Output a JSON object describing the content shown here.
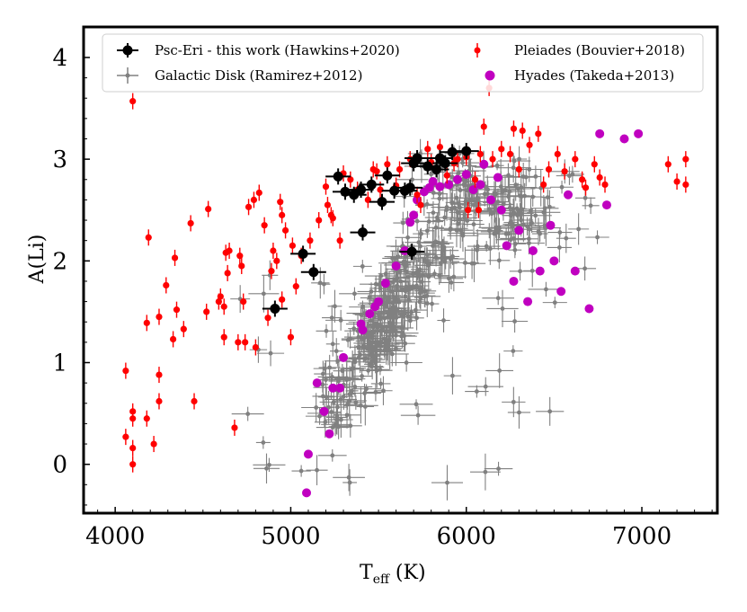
{
  "chart_data": {
    "type": "scatter",
    "xlabel": "T",
    "xlabel_sub": "eff",
    "xlabel_unit": "(K)",
    "ylabel": "A(Li)",
    "xlim": [
      3820,
      7430
    ],
    "ylim": [
      -0.48,
      4.3
    ],
    "xticks": [
      4000,
      5000,
      6000,
      7000
    ],
    "yticks": [
      0,
      1,
      2,
      3,
      4
    ],
    "legend_position": "top",
    "series": [
      {
        "name": "Psc-Eri - this work (Hawkins+2020)",
        "color": "#000000",
        "marker": "big-circle-errorbar",
        "points": [
          [
            4910,
            1.53
          ],
          [
            5070,
            2.07
          ],
          [
            5130,
            1.89
          ],
          [
            5270,
            2.83
          ],
          [
            5310,
            2.68
          ],
          [
            5360,
            2.65
          ],
          [
            5400,
            2.7
          ],
          [
            5410,
            2.28
          ],
          [
            5460,
            2.75
          ],
          [
            5520,
            2.58
          ],
          [
            5550,
            2.84
          ],
          [
            5590,
            2.69
          ],
          [
            5650,
            2.69
          ],
          [
            5680,
            2.72
          ],
          [
            5690,
            2.09
          ],
          [
            5700,
            2.96
          ],
          [
            5720,
            3.01
          ],
          [
            5780,
            2.93
          ],
          [
            5830,
            2.9
          ],
          [
            5850,
            3.01
          ],
          [
            5880,
            2.96
          ],
          [
            5920,
            3.07
          ],
          [
            6000,
            3.08
          ]
        ]
      },
      {
        "name": "Galactic Disk (Ramirez+2012)",
        "color": "#808080",
        "marker": "small-dot-errorbar",
        "points": []
      },
      {
        "name": "Pleiades (Bouvier+2018)",
        "color": "#ff0000",
        "marker": "small-circle-errorbar",
        "points": [
          [
            4100,
            3.57
          ],
          [
            4060,
            0.92
          ],
          [
            4060,
            0.27
          ],
          [
            4100,
            0.52
          ],
          [
            4100,
            0.16
          ],
          [
            4100,
            0.0
          ],
          [
            4100,
            0.45
          ],
          [
            4180,
            1.39
          ],
          [
            4190,
            2.23
          ],
          [
            4180,
            0.45
          ],
          [
            4220,
            0.2
          ],
          [
            4250,
            0.88
          ],
          [
            4250,
            0.62
          ],
          [
            4250,
            1.45
          ],
          [
            4290,
            1.76
          ],
          [
            4330,
            1.23
          ],
          [
            4340,
            2.03
          ],
          [
            4350,
            1.52
          ],
          [
            4390,
            1.33
          ],
          [
            4430,
            2.37
          ],
          [
            4450,
            0.62
          ],
          [
            4520,
            1.5
          ],
          [
            4530,
            2.51
          ],
          [
            4590,
            1.6
          ],
          [
            4600,
            1.65
          ],
          [
            4620,
            1.55
          ],
          [
            4620,
            1.25
          ],
          [
            4630,
            2.08
          ],
          [
            4640,
            1.88
          ],
          [
            4650,
            2.1
          ],
          [
            4680,
            0.36
          ],
          [
            4700,
            1.2
          ],
          [
            4710,
            2.05
          ],
          [
            4720,
            1.95
          ],
          [
            4730,
            1.6
          ],
          [
            4740,
            1.2
          ],
          [
            4760,
            2.53
          ],
          [
            4790,
            2.6
          ],
          [
            4800,
            1.15
          ],
          [
            4820,
            2.67
          ],
          [
            4850,
            2.35
          ],
          [
            4870,
            1.44
          ],
          [
            4890,
            1.9
          ],
          [
            4900,
            2.1
          ],
          [
            4920,
            2.0
          ],
          [
            4940,
            2.58
          ],
          [
            4950,
            2.45
          ],
          [
            4950,
            1.62
          ],
          [
            4970,
            2.3
          ],
          [
            5000,
            1.25
          ],
          [
            5010,
            2.15
          ],
          [
            5030,
            1.75
          ],
          [
            5060,
            2.05
          ],
          [
            5110,
            2.2
          ],
          [
            5160,
            2.4
          ],
          [
            5200,
            2.73
          ],
          [
            5210,
            2.55
          ],
          [
            5230,
            2.45
          ],
          [
            5240,
            2.42
          ],
          [
            5280,
            2.2
          ],
          [
            5300,
            2.86
          ],
          [
            5340,
            2.8
          ],
          [
            5380,
            2.7
          ],
          [
            5440,
            2.6
          ],
          [
            5470,
            2.9
          ],
          [
            5490,
            2.88
          ],
          [
            5510,
            2.7
          ],
          [
            5550,
            2.95
          ],
          [
            5600,
            2.74
          ],
          [
            5620,
            2.9
          ],
          [
            5680,
            3.0
          ],
          [
            5720,
            2.65
          ],
          [
            5740,
            2.55
          ],
          [
            5780,
            3.1
          ],
          [
            5800,
            2.97
          ],
          [
            5850,
            3.12
          ],
          [
            5890,
            2.84
          ],
          [
            5930,
            2.96
          ],
          [
            5950,
            3.0
          ],
          [
            6000,
            3.02
          ],
          [
            6010,
            2.5
          ],
          [
            6050,
            2.8
          ],
          [
            6070,
            2.5
          ],
          [
            6080,
            3.05
          ],
          [
            6100,
            3.32
          ],
          [
            6130,
            3.7
          ],
          [
            6150,
            3.0
          ],
          [
            6200,
            3.1
          ],
          [
            6250,
            3.05
          ],
          [
            6270,
            3.3
          ],
          [
            6300,
            2.9
          ],
          [
            6320,
            3.28
          ],
          [
            6360,
            3.14
          ],
          [
            6410,
            3.25
          ],
          [
            6440,
            2.75
          ],
          [
            6470,
            2.9
          ],
          [
            6520,
            3.05
          ],
          [
            6560,
            2.88
          ],
          [
            6620,
            3.0
          ],
          [
            6660,
            2.8
          ],
          [
            6680,
            2.72
          ],
          [
            6730,
            2.95
          ],
          [
            6760,
            2.82
          ],
          [
            6790,
            2.75
          ],
          [
            7150,
            2.95
          ],
          [
            7200,
            2.78
          ],
          [
            7250,
            2.75
          ],
          [
            7250,
            3.0
          ]
        ]
      },
      {
        "name": "Hyades (Takeda+2013)",
        "color": "#c000c0",
        "marker": "circle",
        "points": [
          [
            5090,
            -0.28
          ],
          [
            5100,
            0.1
          ],
          [
            5150,
            0.8
          ],
          [
            5190,
            0.52
          ],
          [
            5220,
            0.3
          ],
          [
            5240,
            0.75
          ],
          [
            5280,
            0.75
          ],
          [
            5300,
            1.05
          ],
          [
            5400,
            1.38
          ],
          [
            5410,
            1.32
          ],
          [
            5450,
            1.48
          ],
          [
            5480,
            1.55
          ],
          [
            5500,
            1.6
          ],
          [
            5540,
            1.78
          ],
          [
            5600,
            1.95
          ],
          [
            5650,
            2.1
          ],
          [
            5680,
            2.38
          ],
          [
            5700,
            2.45
          ],
          [
            5720,
            2.6
          ],
          [
            5760,
            2.68
          ],
          [
            5790,
            2.72
          ],
          [
            5810,
            2.78
          ],
          [
            5850,
            2.73
          ],
          [
            5900,
            2.75
          ],
          [
            5950,
            2.8
          ],
          [
            6000,
            2.85
          ],
          [
            6040,
            2.7
          ],
          [
            6080,
            2.75
          ],
          [
            6100,
            2.95
          ],
          [
            6140,
            2.6
          ],
          [
            6180,
            2.82
          ],
          [
            6200,
            2.5
          ],
          [
            6230,
            2.15
          ],
          [
            6270,
            1.8
          ],
          [
            6300,
            2.3
          ],
          [
            6350,
            1.6
          ],
          [
            6380,
            2.1
          ],
          [
            6420,
            1.9
          ],
          [
            6480,
            2.35
          ],
          [
            6500,
            2.0
          ],
          [
            6540,
            1.7
          ],
          [
            6580,
            2.65
          ],
          [
            6620,
            1.9
          ],
          [
            6700,
            1.53
          ],
          [
            6760,
            3.25
          ],
          [
            6800,
            2.55
          ],
          [
            6900,
            3.2
          ],
          [
            6980,
            3.25
          ]
        ]
      }
    ]
  }
}
